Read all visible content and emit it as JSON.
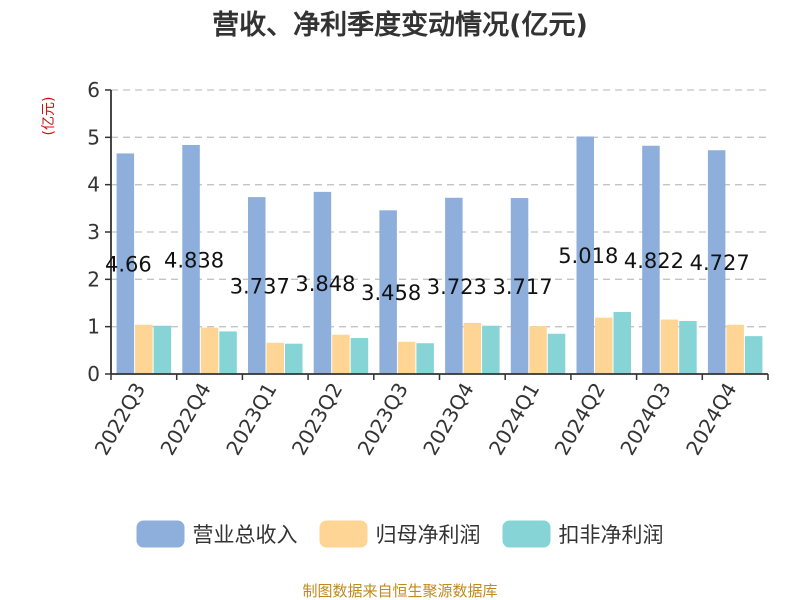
{
  "chart_data": {
    "type": "bar",
    "title": "营收、净利季度变动情况(亿元)",
    "ylabel": "(亿元)",
    "ylim": [
      0,
      6
    ],
    "yticks": [
      0,
      1,
      2,
      3,
      4,
      5,
      6
    ],
    "grid": true,
    "legend_position": "bottom",
    "categories": [
      "2022Q3",
      "2022Q4",
      "2023Q1",
      "2023Q2",
      "2023Q3",
      "2023Q4",
      "2024Q1",
      "2024Q2",
      "2024Q3",
      "2024Q4"
    ],
    "series": [
      {
        "name": "营业总收入",
        "color": "#8eaedb",
        "values": [
          4.66,
          4.838,
          3.737,
          3.848,
          3.458,
          3.723,
          3.717,
          5.018,
          4.822,
          4.727
        ]
      },
      {
        "name": "归母净利润",
        "color": "#fed594",
        "values": [
          1.04,
          0.98,
          0.66,
          0.83,
          0.68,
          1.08,
          1.01,
          1.19,
          1.15,
          1.04
        ]
      },
      {
        "name": "扣非净利润",
        "color": "#86d4d6",
        "values": [
          1.02,
          0.9,
          0.64,
          0.76,
          0.65,
          1.02,
          0.85,
          1.31,
          1.12,
          0.8
        ]
      }
    ],
    "data_labels": [
      "4.66",
      "4.838",
      "3.737",
      "3.848",
      "3.458",
      "3.723",
      "3.717",
      "5.018",
      "4.822",
      "4.727"
    ]
  },
  "source": "制图数据来自恒生聚源数据库"
}
